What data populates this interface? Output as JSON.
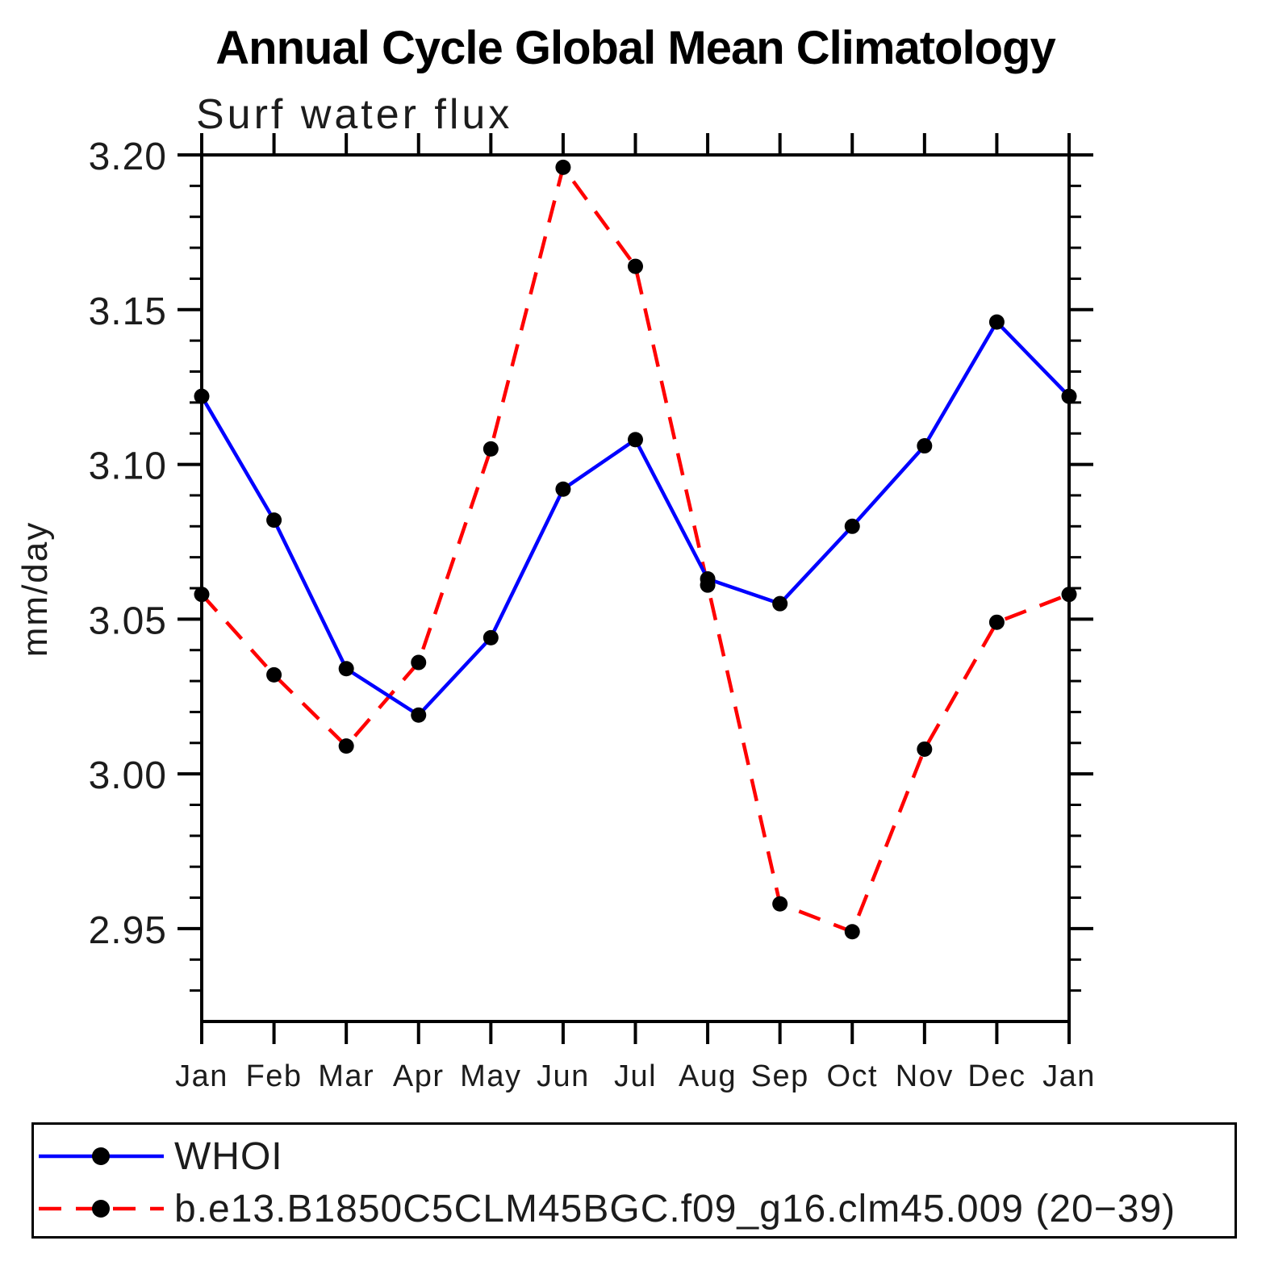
{
  "page": {
    "background": "#ffffff"
  },
  "chart_data": {
    "type": "line",
    "title": "Annual Cycle Global Mean Climatology",
    "subtitle": "Surf water flux",
    "ylabel": "mm/day",
    "categories": [
      "Jan",
      "Feb",
      "Mar",
      "Apr",
      "May",
      "Jun",
      "Jul",
      "Aug",
      "Sep",
      "Oct",
      "Nov",
      "Dec",
      "Jan"
    ],
    "series": [
      {
        "name": "WHOI",
        "color": "#0000ff",
        "line_style": "solid",
        "marker": "circle",
        "marker_color": "#000000",
        "values": [
          3.122,
          3.082,
          3.034,
          3.019,
          3.044,
          3.092,
          3.108,
          3.063,
          3.055,
          3.08,
          3.106,
          3.146,
          3.122
        ]
      },
      {
        "name": "b.e13.B1850C5CLM45BGC.f09_g16.clm45.009 (20−39)",
        "color": "#ff0000",
        "line_style": "dashed",
        "marker": "circle",
        "marker_color": "#000000",
        "values": [
          3.058,
          3.032,
          3.009,
          3.036,
          3.105,
          3.196,
          3.164,
          3.061,
          2.958,
          2.949,
          3.008,
          3.049,
          3.058
        ]
      }
    ],
    "y_axis": {
      "min": 2.92,
      "max": 3.2,
      "major_ticks": [
        2.95,
        3.0,
        3.05,
        3.1,
        3.15,
        3.2
      ],
      "major_tick_labels": [
        "2.95",
        "3.00",
        "3.05",
        "3.10",
        "3.15",
        "3.20"
      ],
      "minor_step": 0.01
    },
    "x_axis": {
      "tick_per_category": true
    },
    "grid": false,
    "legend_position": "bottom"
  }
}
